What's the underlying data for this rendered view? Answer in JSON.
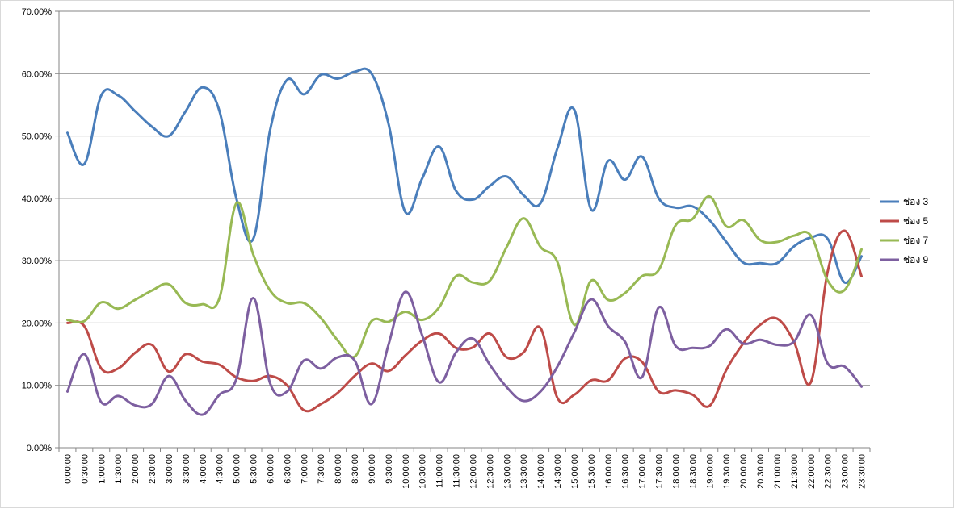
{
  "chart_data": {
    "type": "line",
    "title": "",
    "xlabel": "",
    "ylabel": "",
    "ylim": [
      0,
      0.7
    ],
    "y_ticks": [
      "0.00%",
      "10.00%",
      "20.00%",
      "30.00%",
      "40.00%",
      "50.00%",
      "60.00%",
      "70.00%"
    ],
    "grid": true,
    "legend_position": "right",
    "categories": [
      "0:00:00",
      "0:30:00",
      "1:00:00",
      "1:30:00",
      "2:00:00",
      "2:30:00",
      "3:00:00",
      "3:30:00",
      "4:00:00",
      "4:30:00",
      "5:00:00",
      "5:30:00",
      "6:00:00",
      "6:30:00",
      "7:00:00",
      "7:30:00",
      "8:00:00",
      "8:30:00",
      "9:00:00",
      "9:30:00",
      "10:00:00",
      "10:30:00",
      "11:00:00",
      "11:30:00",
      "12:00:00",
      "12:30:00",
      "13:00:00",
      "13:30:00",
      "14:00:00",
      "14:30:00",
      "15:00:00",
      "15:30:00",
      "16:00:00",
      "16:30:00",
      "17:00:00",
      "17:30:00",
      "18:00:00",
      "18:30:00",
      "19:00:00",
      "19:30:00",
      "20:00:00",
      "20:30:00",
      "21:00:00",
      "21:30:00",
      "22:00:00",
      "22:30:00",
      "23:00:00",
      "23:30:00"
    ],
    "series": [
      {
        "name": "ช่อง 3",
        "color": "#4a7ebb",
        "values": [
          0.505,
          0.455,
          0.565,
          0.565,
          0.54,
          0.515,
          0.5,
          0.54,
          0.578,
          0.54,
          0.4,
          0.335,
          0.51,
          0.59,
          0.567,
          0.598,
          0.592,
          0.603,
          0.6,
          0.52,
          0.378,
          0.432,
          0.483,
          0.412,
          0.398,
          0.42,
          0.435,
          0.405,
          0.392,
          0.48,
          0.542,
          0.382,
          0.46,
          0.43,
          0.467,
          0.4,
          0.385,
          0.387,
          0.365,
          0.33,
          0.297,
          0.296,
          0.296,
          0.323,
          0.337,
          0.335,
          0.265,
          0.307
        ]
      },
      {
        "name": "ช่อง 5",
        "color": "#be4b48",
        "values": [
          0.2,
          0.195,
          0.127,
          0.127,
          0.152,
          0.165,
          0.122,
          0.15,
          0.138,
          0.133,
          0.113,
          0.107,
          0.115,
          0.1,
          0.06,
          0.07,
          0.088,
          0.115,
          0.135,
          0.123,
          0.148,
          0.172,
          0.183,
          0.16,
          0.161,
          0.183,
          0.145,
          0.153,
          0.192,
          0.08,
          0.085,
          0.108,
          0.108,
          0.143,
          0.138,
          0.09,
          0.092,
          0.085,
          0.067,
          0.125,
          0.167,
          0.197,
          0.207,
          0.17,
          0.105,
          0.283,
          0.348,
          0.275
        ]
      },
      {
        "name": "ช่อง 7",
        "color": "#98b954",
        "values": [
          0.205,
          0.203,
          0.233,
          0.223,
          0.237,
          0.252,
          0.262,
          0.232,
          0.23,
          0.24,
          0.392,
          0.31,
          0.252,
          0.232,
          0.232,
          0.208,
          0.172,
          0.146,
          0.203,
          0.202,
          0.218,
          0.205,
          0.225,
          0.275,
          0.265,
          0.268,
          0.322,
          0.368,
          0.322,
          0.298,
          0.197,
          0.268,
          0.237,
          0.248,
          0.275,
          0.285,
          0.357,
          0.367,
          0.403,
          0.355,
          0.365,
          0.333,
          0.33,
          0.34,
          0.34,
          0.268,
          0.253,
          0.318
        ]
      },
      {
        "name": "ช่อง 9",
        "color": "#7d5fa0",
        "values": [
          0.09,
          0.15,
          0.073,
          0.083,
          0.068,
          0.07,
          0.115,
          0.075,
          0.053,
          0.085,
          0.11,
          0.24,
          0.103,
          0.09,
          0.14,
          0.127,
          0.145,
          0.14,
          0.07,
          0.165,
          0.25,
          0.18,
          0.105,
          0.153,
          0.175,
          0.133,
          0.097,
          0.075,
          0.09,
          0.13,
          0.185,
          0.238,
          0.195,
          0.17,
          0.113,
          0.225,
          0.163,
          0.16,
          0.163,
          0.19,
          0.167,
          0.173,
          0.165,
          0.17,
          0.213,
          0.135,
          0.13,
          0.098
        ]
      }
    ]
  }
}
